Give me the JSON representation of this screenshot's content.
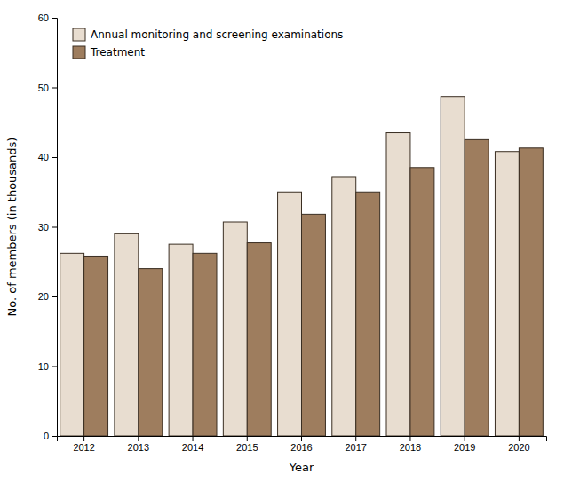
{
  "chart_data": {
    "type": "bar",
    "xlabel": "Year",
    "ylabel": "No. of members (in thousands)",
    "categories": [
      "2012",
      "2013",
      "2014",
      "2015",
      "2016",
      "2017",
      "2018",
      "2019",
      "2020"
    ],
    "series": [
      {
        "name": "Annual monitoring and screening examinations",
        "color": "#e8ddd0",
        "values": [
          26.2,
          29.0,
          27.5,
          30.7,
          35.0,
          37.2,
          43.5,
          48.7,
          40.8
        ]
      },
      {
        "name": "Treatment",
        "color": "#9e7d5e",
        "values": [
          25.8,
          24.0,
          26.2,
          27.7,
          31.8,
          35.0,
          38.5,
          42.5,
          41.3
        ]
      }
    ],
    "ylim": [
      0,
      60
    ],
    "yticks": [
      0,
      10,
      20,
      30,
      40,
      50,
      60
    ],
    "grid": false,
    "legend": "upper-left"
  }
}
